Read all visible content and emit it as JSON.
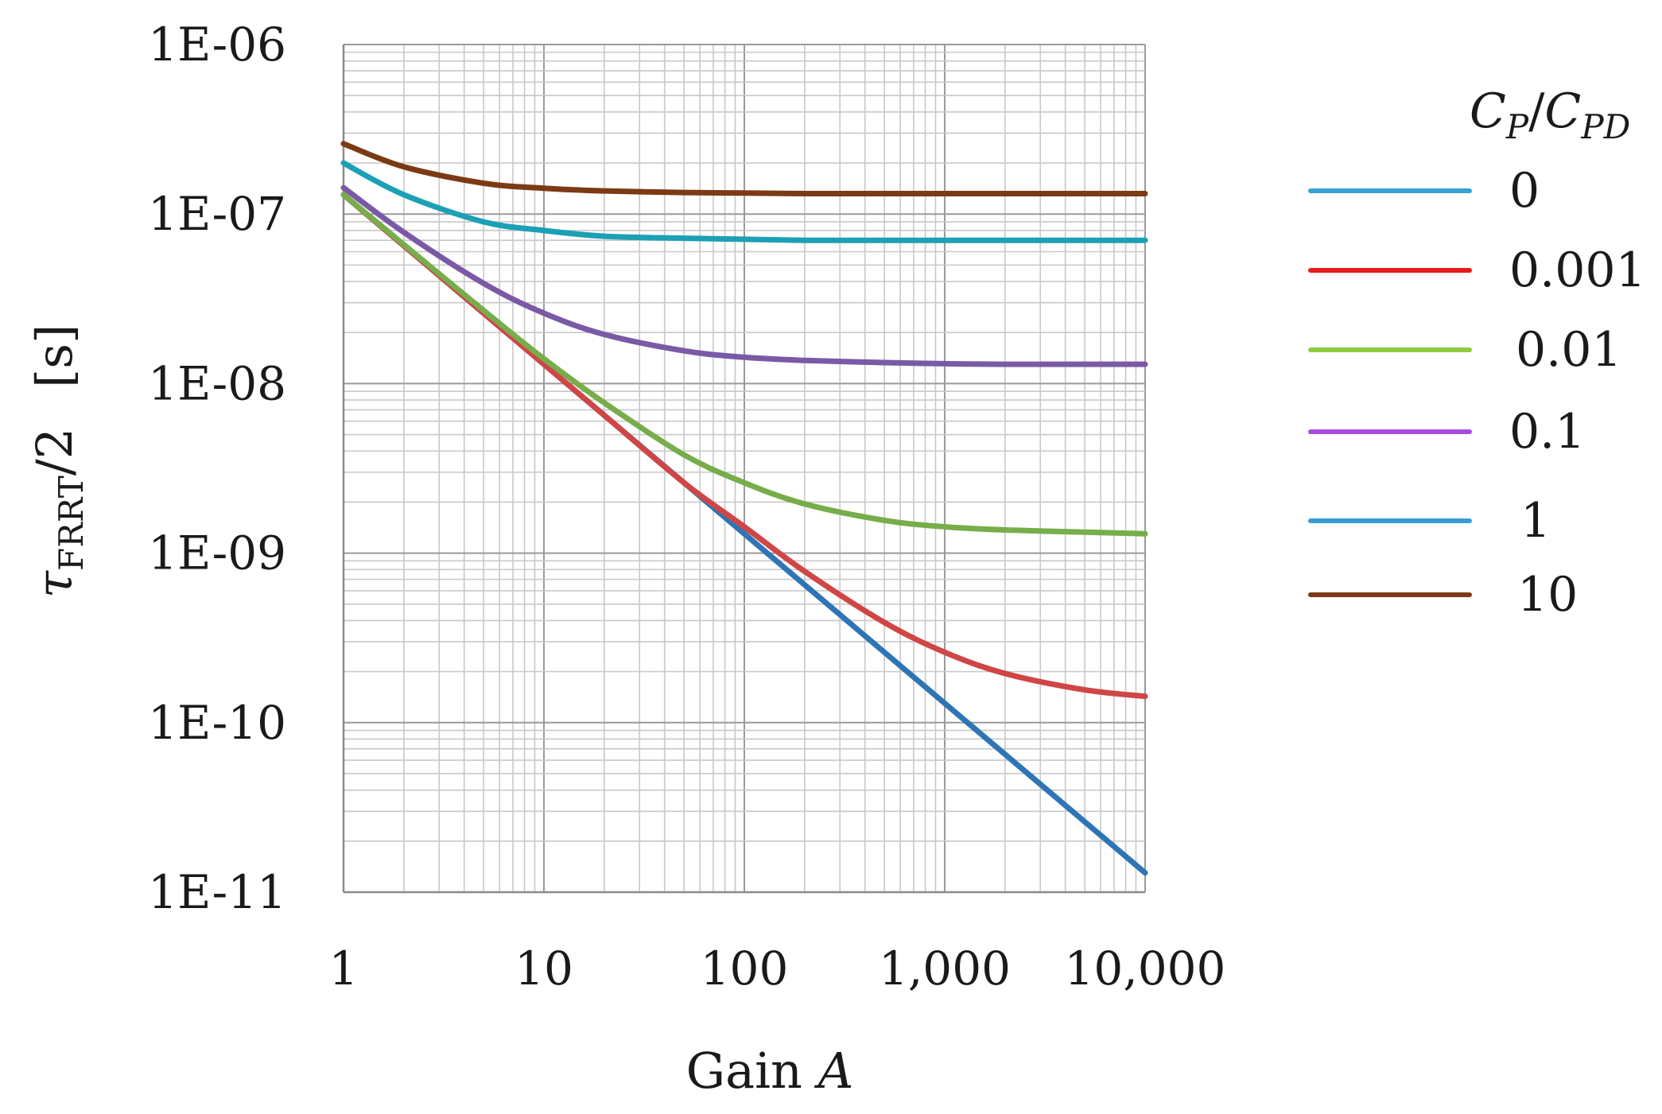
{
  "chart_data": {
    "type": "line",
    "xlabel": {
      "text": "Gain ",
      "var": "A"
    },
    "ylabel": {
      "symbol": "τ",
      "subscript": "FRRT",
      "suffix": "/2",
      "unit": "[s]"
    },
    "xscale": "log",
    "yscale": "log",
    "xlim": [
      1,
      10000
    ],
    "ylim": [
      1e-11,
      1e-06
    ],
    "x_ticks": [
      1,
      10,
      100,
      1000,
      10000
    ],
    "x_tick_labels": [
      "1",
      "10",
      "100",
      "1,000",
      "10,000"
    ],
    "y_ticks": [
      1e-06,
      1e-07,
      1e-08,
      1e-09,
      1e-10,
      1e-11
    ],
    "y_tick_labels": [
      "1E-06",
      "1E-07",
      "1E-08",
      "1E-09",
      "1E-10",
      "1E-11"
    ],
    "grid": true,
    "legend_position": "right",
    "legend_title": {
      "c1": "C",
      "s1": "P",
      "slash": "/",
      "c2": "C",
      "s2": "PD"
    },
    "series": [
      {
        "name": "0",
        "color": "#2e75b6",
        "x": [
          1,
          10000
        ],
        "y": [
          1.3e-07,
          1.3e-11
        ]
      },
      {
        "name": "0.001",
        "color": "#d04545",
        "x": [
          1,
          2,
          5,
          10,
          20,
          50,
          100,
          200,
          500,
          1000,
          2000,
          5000,
          10000
        ],
        "y": [
          1.3e-07,
          6.5e-08,
          2.6e-08,
          1.3e-08,
          6.5e-09,
          2.6e-09,
          1.43e-09,
          7.8e-10,
          3.9e-10,
          2.6e-10,
          1.95e-10,
          1.56e-10,
          1.43e-10
        ]
      },
      {
        "name": "0.01",
        "color": "#77ad4a",
        "x": [
          1,
          2,
          5,
          10,
          20,
          50,
          100,
          200,
          500,
          1000,
          2000,
          5000,
          10000
        ],
        "y": [
          1.3e-07,
          6.6e-08,
          2.7e-08,
          1.4e-08,
          7.7e-09,
          3.8e-09,
          2.6e-09,
          1.95e-09,
          1.56e-09,
          1.43e-09,
          1.37e-09,
          1.33e-09,
          1.3e-09
        ]
      },
      {
        "name": "0.1",
        "color": "#7a5aa6",
        "x": [
          1,
          2,
          5,
          10,
          20,
          50,
          100,
          200,
          500,
          1000,
          2000,
          5000,
          10000
        ],
        "y": [
          1.43e-07,
          7.8e-08,
          3.9e-08,
          2.6e-08,
          1.95e-08,
          1.56e-08,
          1.43e-08,
          1.37e-08,
          1.33e-08,
          1.31e-08,
          1.3e-08,
          1.3e-08,
          1.3e-08
        ]
      },
      {
        "name": "1",
        "color": "#1ba0b5",
        "x": [
          1,
          2,
          5,
          10,
          20,
          50,
          100,
          200,
          500,
          1000,
          2000,
          5000,
          10000
        ],
        "y": [
          2e-07,
          1.3e-07,
          9e-08,
          8e-08,
          7.4e-08,
          7.2e-08,
          7.1e-08,
          7e-08,
          7e-08,
          7e-08,
          7e-08,
          7e-08,
          7e-08
        ]
      },
      {
        "name": "10",
        "color": "#7b3a14",
        "x": [
          1,
          2,
          5,
          10,
          20,
          50,
          100,
          200,
          500,
          1000,
          2000,
          5000,
          10000
        ],
        "y": [
          2.6e-07,
          1.9e-07,
          1.52e-07,
          1.42e-07,
          1.37e-07,
          1.34e-07,
          1.33e-07,
          1.32e-07,
          1.32e-07,
          1.32e-07,
          1.32e-07,
          1.32e-07,
          1.32e-07
        ]
      }
    ],
    "legend_swatch_colors": [
      "#3aa0d8",
      "#e51c1c",
      "#8fcc3f",
      "#a64de0",
      "#3a9bd6",
      "#7b3a14"
    ]
  }
}
